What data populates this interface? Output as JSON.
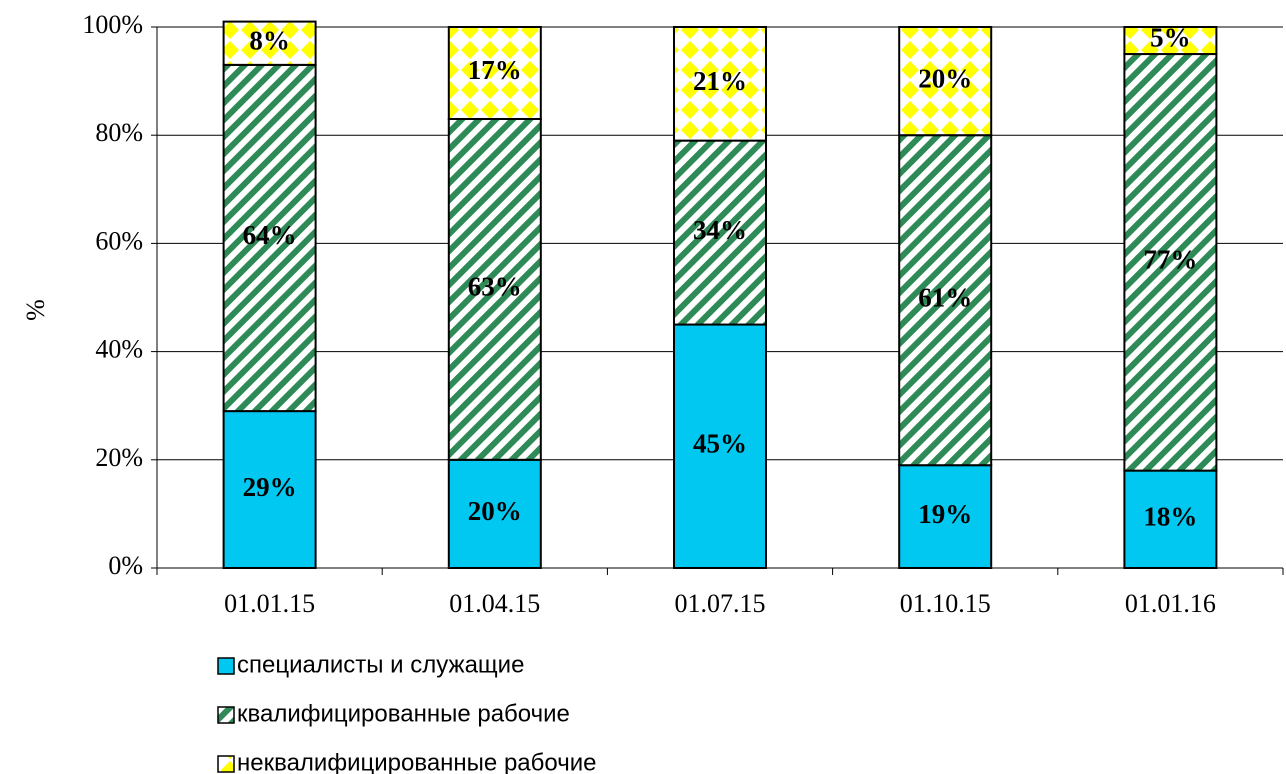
{
  "chart_data": {
    "type": "stacked_bar",
    "y_label": "%",
    "categories": [
      "01.01.15",
      "01.04.15",
      "01.07.15",
      "01.10.15",
      "01.01.16"
    ],
    "series": [
      {
        "name": "специалисты и служащие",
        "color": "#00c8f0",
        "hatch": "solid",
        "values": [
          29,
          20,
          45,
          19,
          18
        ],
        "value_labels": [
          "29%",
          "20%",
          "45%",
          "19%",
          "18%"
        ]
      },
      {
        "name": "квалифицированные рабочие",
        "color": "#2e8b57",
        "hatch": "diagonal",
        "values": [
          64,
          63,
          34,
          61,
          77
        ],
        "value_labels": [
          "64%",
          "63%",
          "34%",
          "61%",
          "77%"
        ]
      },
      {
        "name": "неквалифицированные рабочие",
        "color": "#ffff00",
        "hatch": "diamond",
        "values": [
          8,
          17,
          21,
          20,
          5
        ],
        "value_labels": [
          "8%",
          "17%",
          "21%",
          "20%",
          "5%"
        ]
      }
    ],
    "ylim": [
      0,
      100
    ],
    "yticks": [
      {
        "value": 0,
        "label": "0%"
      },
      {
        "value": 20,
        "label": "20%"
      },
      {
        "value": 40,
        "label": "40%"
      },
      {
        "value": 60,
        "label": "60%"
      },
      {
        "value": 80,
        "label": "80%"
      },
      {
        "value": 100,
        "label": "100%"
      }
    ],
    "grid": true,
    "legend": "bottom"
  }
}
